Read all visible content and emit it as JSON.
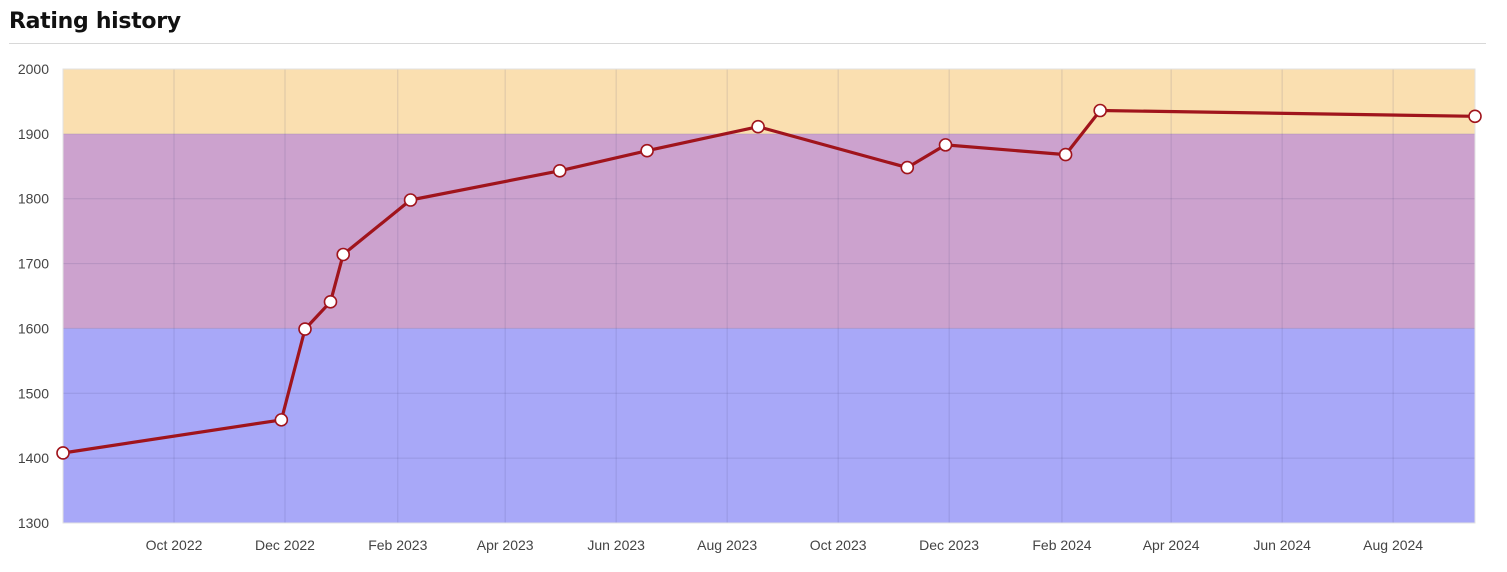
{
  "header": {
    "title": "Rating history"
  },
  "chart_data": {
    "type": "line",
    "title": "Rating history",
    "xlabel": "",
    "ylabel": "",
    "ylim": [
      1300,
      2000
    ],
    "xlim": [
      "2022-08-01",
      "2024-09-15"
    ],
    "y_ticks": [
      "2000",
      "1900",
      "1800",
      "1700",
      "1600",
      "1500",
      "1400",
      "1300"
    ],
    "x_ticks": [
      {
        "label": "Oct 2022",
        "date": "2022-10-01"
      },
      {
        "label": "Dec 2022",
        "date": "2022-12-01"
      },
      {
        "label": "Feb 2023",
        "date": "2023-02-01"
      },
      {
        "label": "Apr 2023",
        "date": "2023-04-01"
      },
      {
        "label": "Jun 2023",
        "date": "2023-06-01"
      },
      {
        "label": "Aug 2023",
        "date": "2023-08-01"
      },
      {
        "label": "Oct 2023",
        "date": "2023-10-01"
      },
      {
        "label": "Dec 2023",
        "date": "2023-12-01"
      },
      {
        "label": "Feb 2024",
        "date": "2024-02-01"
      },
      {
        "label": "Apr 2024",
        "date": "2024-04-01"
      },
      {
        "label": "Jun 2024",
        "date": "2024-06-01"
      },
      {
        "label": "Aug 2024",
        "date": "2024-08-01"
      }
    ],
    "bands": [
      {
        "from": 1300,
        "to": 1600,
        "color": "#a8a8f8"
      },
      {
        "from": 1600,
        "to": 1900,
        "color": "#cca2ce"
      },
      {
        "from": 1900,
        "to": 2000,
        "color": "#fadfb0"
      }
    ],
    "grid": true,
    "series": [
      {
        "color": "#a0141c",
        "points": [
          {
            "x": "2022-08-01",
            "y": 1408
          },
          {
            "x": "2022-11-29",
            "y": 1459
          },
          {
            "x": "2022-12-12",
            "y": 1599
          },
          {
            "x": "2022-12-26",
            "y": 1641
          },
          {
            "x": "2023-01-02",
            "y": 1714
          },
          {
            "x": "2023-02-08",
            "y": 1798
          },
          {
            "x": "2023-05-01",
            "y": 1843
          },
          {
            "x": "2023-06-18",
            "y": 1874
          },
          {
            "x": "2023-08-18",
            "y": 1911
          },
          {
            "x": "2023-11-08",
            "y": 1848
          },
          {
            "x": "2023-11-29",
            "y": 1883
          },
          {
            "x": "2024-02-03",
            "y": 1868
          },
          {
            "x": "2024-02-22",
            "y": 1936
          },
          {
            "x": "2024-09-15",
            "y": 1927
          }
        ]
      }
    ]
  }
}
